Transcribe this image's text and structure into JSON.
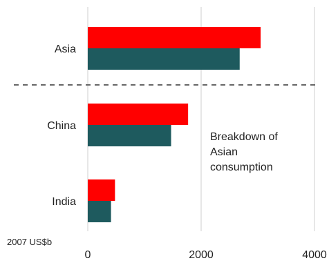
{
  "chart_data": {
    "type": "bar",
    "orientation": "horizontal",
    "categories": [
      "Asia",
      "China",
      "India"
    ],
    "series": [
      {
        "color": "#ff0000",
        "values": [
          3050,
          1770,
          480
        ]
      },
      {
        "color": "#1e5a5e",
        "values": [
          2680,
          1470,
          410
        ]
      }
    ],
    "xlim": [
      0,
      4000
    ],
    "xticks": [
      0,
      2000,
      4000
    ],
    "xtick_labels": [
      "0",
      "2000",
      "4000"
    ],
    "unit_label": "2007 US$b",
    "annotation": [
      "Breakdown of",
      "Asian",
      "consumption"
    ],
    "separator": "dashed line between Asia and China",
    "grid": "vertical"
  }
}
